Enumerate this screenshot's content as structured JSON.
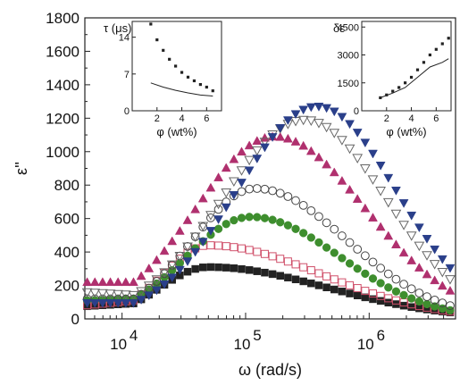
{
  "chart_data": [
    {
      "type": "scatter",
      "role": "main",
      "xlabel": "ω (rad/s)",
      "ylabel": "ε''",
      "x_scale": "log",
      "xlim": [
        5000,
        5000000
      ],
      "ylim": [
        0,
        1800
      ],
      "x_ticks": [
        10000,
        100000,
        1000000
      ],
      "x_tick_labels": [
        {
          "base": "10",
          "exp": "4"
        },
        {
          "base": "10",
          "exp": "5"
        },
        {
          "base": "10",
          "exp": "6"
        }
      ],
      "y_ticks": [
        0,
        200,
        400,
        600,
        800,
        1000,
        1200,
        1400,
        1600,
        1800
      ],
      "y_tick_labels": [
        "0",
        "200",
        "400",
        "600",
        "800",
        "1000",
        "1200",
        "1400",
        "1600",
        "1800"
      ],
      "grid": false,
      "legend": "none",
      "series": [
        {
          "marker": "square-filled",
          "color": "#222222",
          "peak_x": 50000,
          "peak_y": 310,
          "left_y": 95,
          "right_y": 35,
          "low_x": 5000,
          "low_y": 75
        },
        {
          "marker": "square-open",
          "color": "#d0506a",
          "peak_x": 50000,
          "peak_y": 440,
          "left_y": 115,
          "right_y": 40,
          "low_x": 5000,
          "low_y": 80
        },
        {
          "marker": "circle-filled",
          "color": "#3e8e2e",
          "peak_x": 110000,
          "peak_y": 610,
          "left_y": 120,
          "right_y": 45,
          "low_x": 5000,
          "low_y": 110
        },
        {
          "marker": "circle-open",
          "color": "#444444",
          "peak_x": 120000,
          "peak_y": 780,
          "left_y": 120,
          "right_y": 70,
          "low_x": 5000,
          "low_y": 120
        },
        {
          "marker": "triangle-up-filled",
          "color": "#b0306e",
          "peak_x": 170000,
          "peak_y": 1090,
          "left_y": 220,
          "right_y": 150,
          "low_x": 5000,
          "low_y": 220
        },
        {
          "marker": "triangle-down-open",
          "color": "#666666",
          "peak_x": 300000,
          "peak_y": 1190,
          "left_y": 140,
          "right_y": 210,
          "low_x": 5000,
          "low_y": 160
        },
        {
          "marker": "triangle-down-filled",
          "color": "#2a3f8a",
          "peak_x": 380000,
          "peak_y": 1270,
          "left_y": 95,
          "right_y": 270,
          "low_x": 5000,
          "low_y": 95
        }
      ]
    },
    {
      "type": "line",
      "role": "inset-left",
      "ylabel": "τ (μs)",
      "xlabel": "φ (wt%)",
      "xlim": [
        0,
        7.2
      ],
      "ylim": [
        0,
        17
      ],
      "y_ticks": [
        0,
        7,
        14
      ],
      "y_tick_labels": [
        "0",
        "7",
        "14"
      ],
      "x_ticks": [
        2,
        4,
        6
      ],
      "x_tick_labels": [
        "2",
        "4",
        "6"
      ],
      "series": [
        {
          "marker": "square-filled",
          "x": [
            1.5,
            2.0,
            2.5,
            3.0,
            3.5,
            4.0,
            4.5,
            5.0,
            5.5,
            6.0,
            6.5
          ],
          "y": [
            16.5,
            13.5,
            11.5,
            9.8,
            8.5,
            7.3,
            6.4,
            5.7,
            5.0,
            4.5,
            3.8
          ]
        },
        {
          "marker": "line",
          "x": [
            1.5,
            2.5,
            3.5,
            4.5,
            5.5,
            6.5
          ],
          "y": [
            5.3,
            4.5,
            3.9,
            3.4,
            3.0,
            2.8
          ]
        }
      ]
    },
    {
      "type": "line",
      "role": "inset-right",
      "ylabel": "δε",
      "xlabel": "φ (wt%)",
      "xlim": [
        0,
        7.2
      ],
      "ylim": [
        0,
        4800
      ],
      "y_ticks": [
        0,
        1500,
        3000,
        4500
      ],
      "y_tick_labels": [
        "0",
        "1500",
        "3000",
        "4500"
      ],
      "x_ticks": [
        2,
        4,
        6
      ],
      "x_tick_labels": [
        "2",
        "4",
        "6"
      ],
      "series": [
        {
          "marker": "square-filled",
          "x": [
            1.5,
            2.0,
            2.5,
            3.0,
            3.5,
            4.0,
            4.5,
            5.0,
            5.5,
            6.0,
            6.5,
            7.0
          ],
          "y": [
            700,
            850,
            1050,
            1250,
            1500,
            1800,
            2200,
            2600,
            3000,
            3300,
            3600,
            3900
          ]
        },
        {
          "marker": "line",
          "x": [
            1.5,
            2.5,
            3.5,
            4.5,
            5.5,
            6.5,
            7.0
          ],
          "y": [
            700,
            950,
            1250,
            1800,
            2350,
            2600,
            2800
          ]
        }
      ]
    }
  ]
}
